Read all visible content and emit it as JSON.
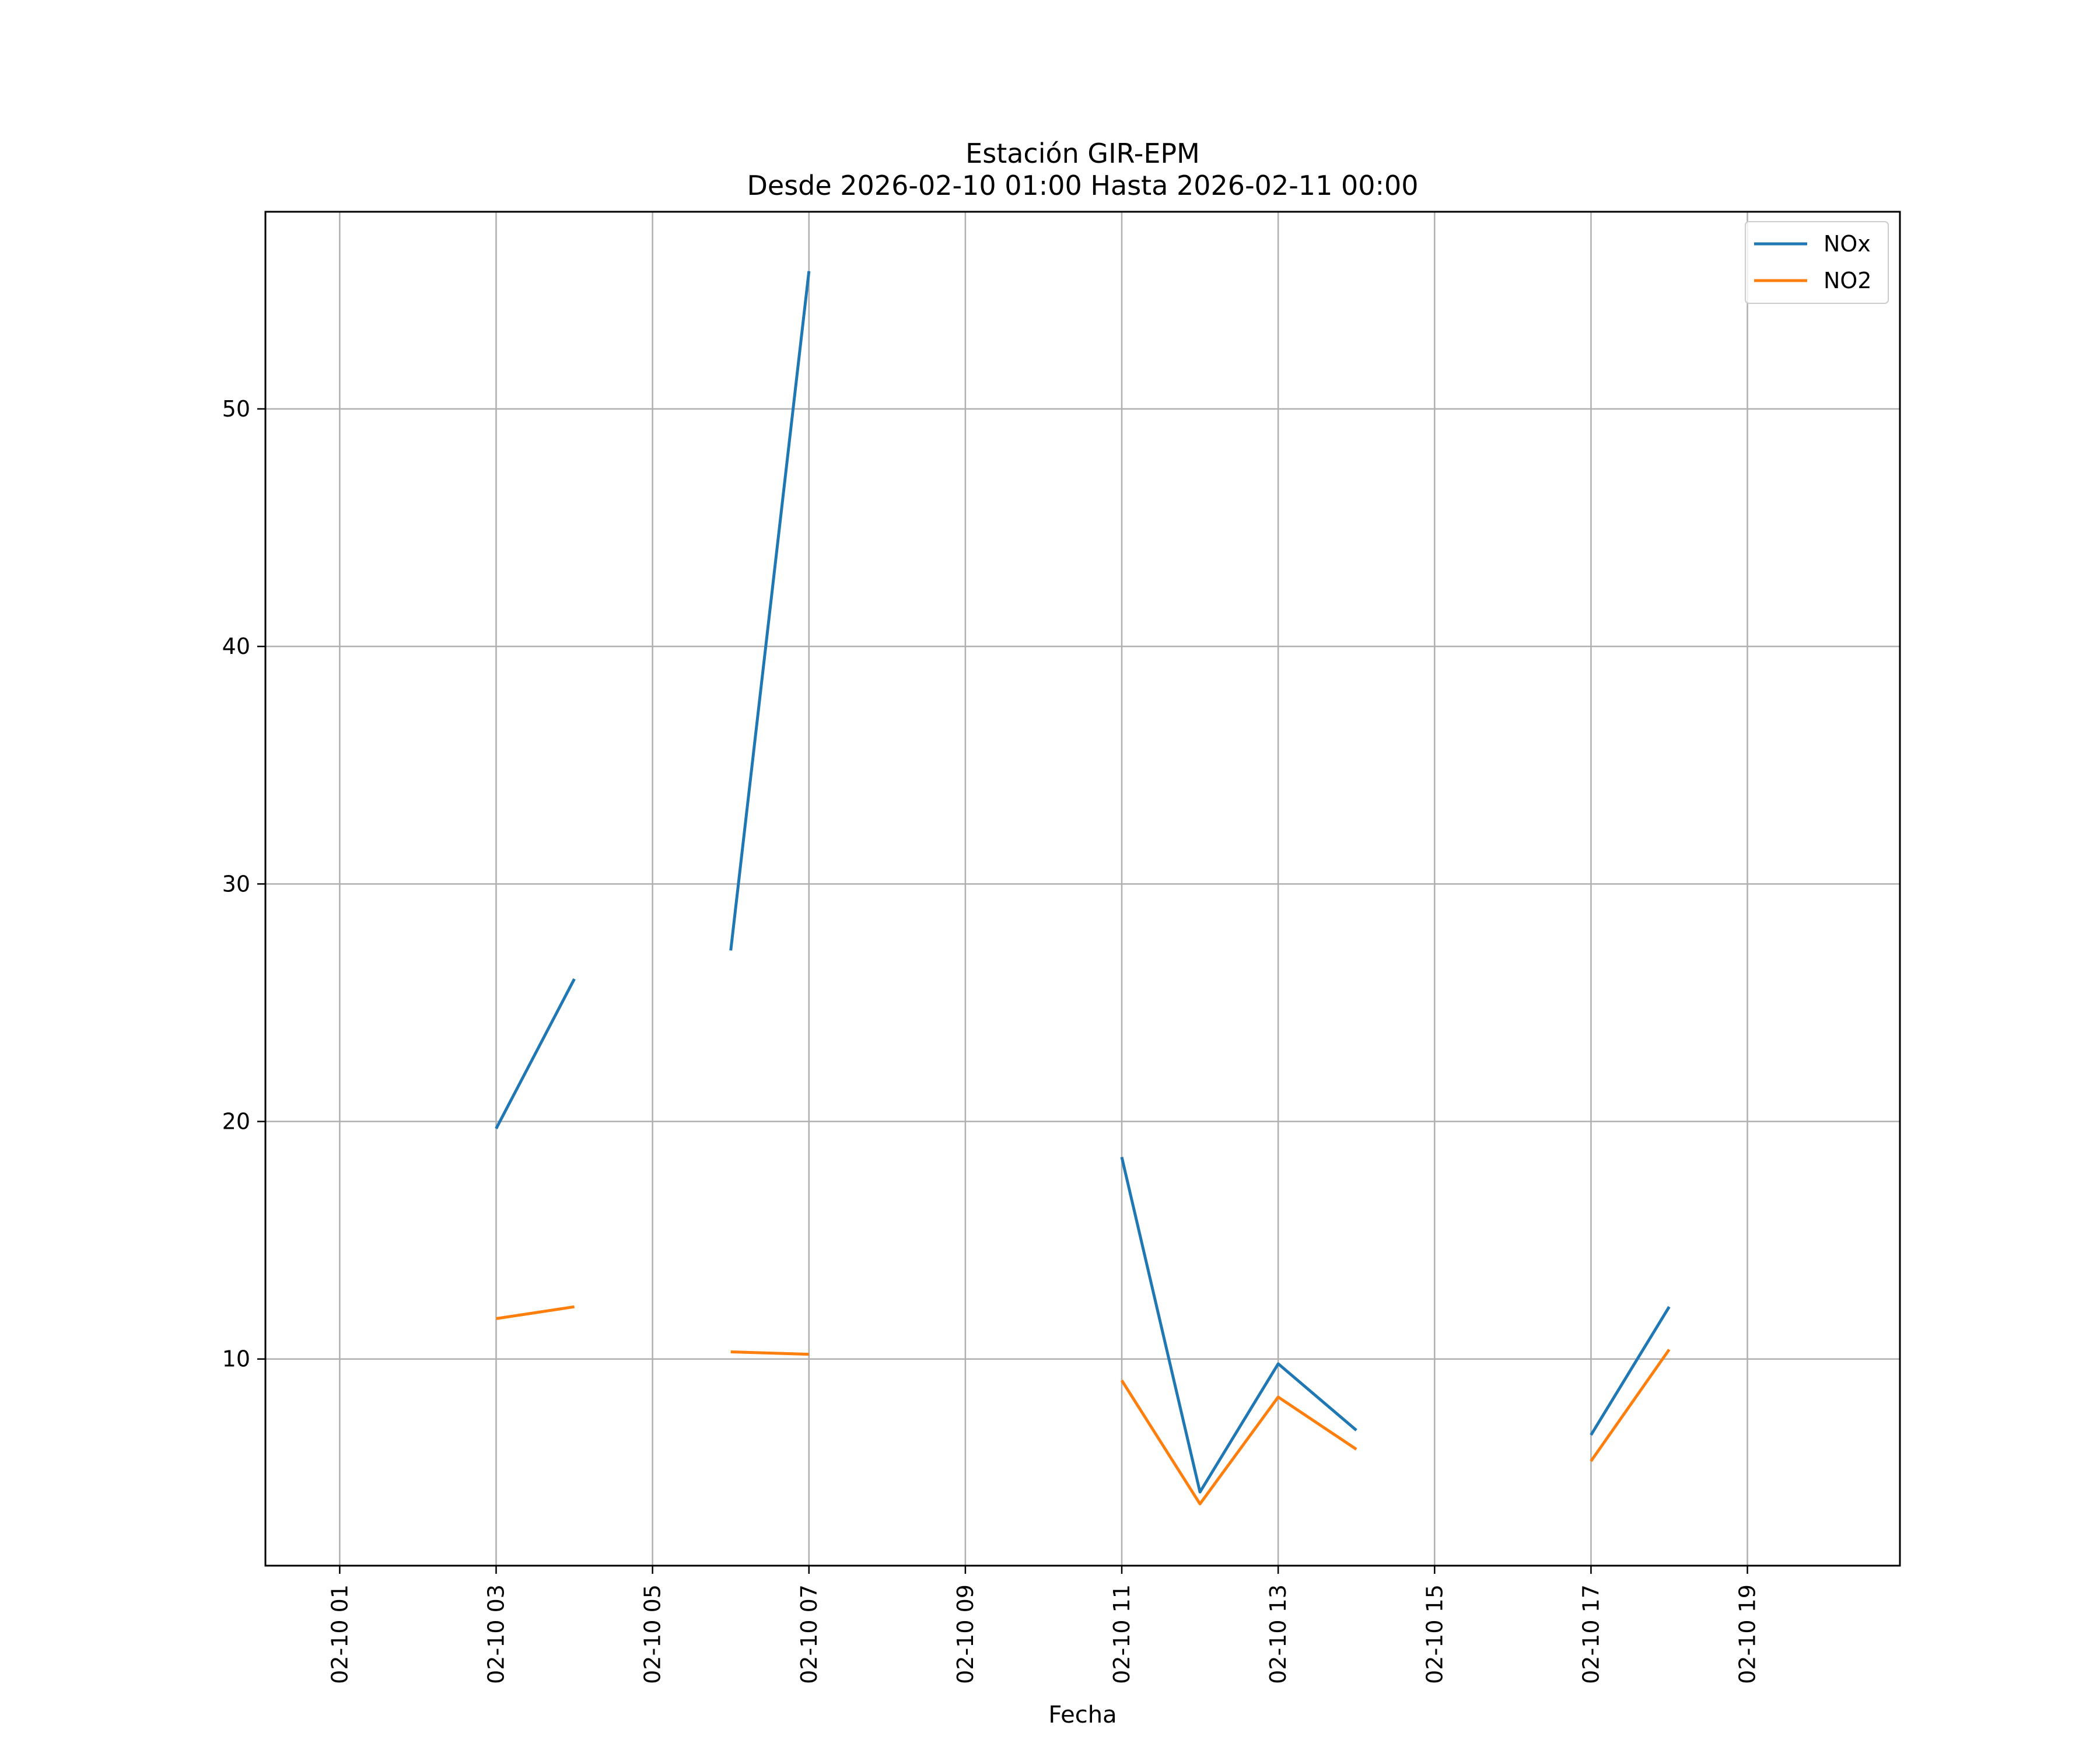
{
  "chart_data": {
    "type": "line",
    "title": "Estación GIR-EPM",
    "subtitle": "Desde 2026-02-10 01:00 Hasta 2026-02-11 00:00",
    "xlabel": "Fecha",
    "ylabel": "",
    "x_ticks": [
      "02-10 01",
      "02-10 03",
      "02-10 05",
      "02-10 07",
      "02-10 09",
      "02-10 11",
      "02-10 13",
      "02-10 15",
      "02-10 17",
      "02-10 19"
    ],
    "y_ticks": [
      10,
      20,
      30,
      40,
      50
    ],
    "xlim": [
      "2026-02-10 00:03",
      "2026-02-10 20:57"
    ],
    "ylim": [
      1.3,
      58.3
    ],
    "grid": true,
    "legend_position": "top-right",
    "x": [
      "2026-02-10 01:00",
      "2026-02-10 02:00",
      "2026-02-10 03:00",
      "2026-02-10 04:00",
      "2026-02-10 05:00",
      "2026-02-10 06:00",
      "2026-02-10 07:00",
      "2026-02-10 08:00",
      "2026-02-10 09:00",
      "2026-02-10 10:00",
      "2026-02-10 11:00",
      "2026-02-10 12:00",
      "2026-02-10 13:00",
      "2026-02-10 14:00",
      "2026-02-10 15:00",
      "2026-02-10 16:00",
      "2026-02-10 17:00",
      "2026-02-10 18:00"
    ],
    "series": [
      {
        "name": "NOx",
        "color": "#1f77b4",
        "values": [
          null,
          null,
          19.7,
          26.0,
          null,
          27.2,
          55.8,
          null,
          null,
          null,
          18.5,
          4.4,
          9.8,
          7.0,
          null,
          null,
          6.8,
          12.2
        ]
      },
      {
        "name": "NO2",
        "color": "#ff7f0e",
        "values": [
          null,
          null,
          11.7,
          12.2,
          null,
          10.3,
          10.2,
          null,
          null,
          null,
          9.1,
          3.9,
          8.4,
          6.2,
          null,
          null,
          5.7,
          10.4
        ]
      }
    ]
  }
}
